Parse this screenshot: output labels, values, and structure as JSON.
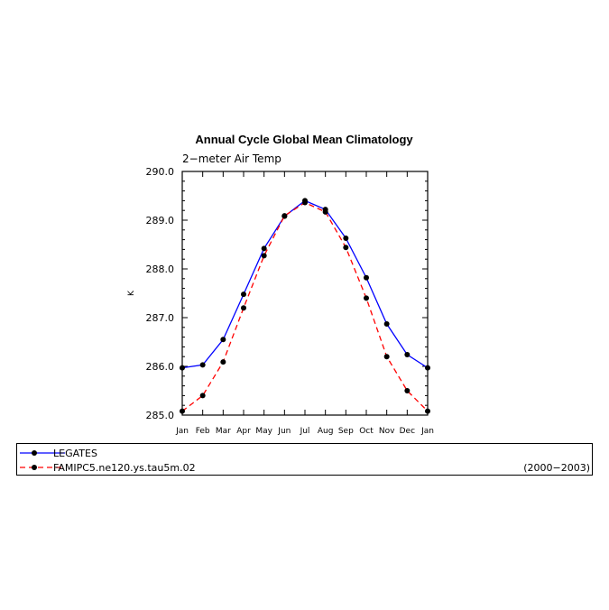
{
  "chart_data": {
    "type": "line",
    "title": "Annual Cycle Global Mean Climatology",
    "subtitle": "2−meter Air Temp",
    "xlabel": "",
    "ylabel": "K",
    "categories": [
      "Jan",
      "Feb",
      "Mar",
      "Apr",
      "May",
      "Jun",
      "Jul",
      "Aug",
      "Sep",
      "Oct",
      "Nov",
      "Dec",
      "Jan"
    ],
    "ylim": [
      285.0,
      290.0
    ],
    "yticks": [
      "285.0",
      "286.0",
      "287.0",
      "288.0",
      "289.0",
      "290.0"
    ],
    "grid": false,
    "legend_position": "bottom",
    "date_range": "(2000−2003)",
    "series": [
      {
        "name": "LEGATES",
        "color": "#0000ff",
        "line_style": "solid",
        "values": [
          285.97,
          286.03,
          286.55,
          287.48,
          288.42,
          289.08,
          289.4,
          289.22,
          288.63,
          287.82,
          286.87,
          286.24,
          285.97
        ]
      },
      {
        "name": "FAMIPC5.ne120.ys.tau5m.02",
        "color": "#ff0000",
        "line_style": "dashed",
        "values": [
          285.08,
          285.4,
          286.09,
          287.2,
          288.27,
          289.09,
          289.36,
          289.17,
          288.44,
          287.4,
          286.2,
          285.5,
          285.08
        ]
      }
    ]
  }
}
